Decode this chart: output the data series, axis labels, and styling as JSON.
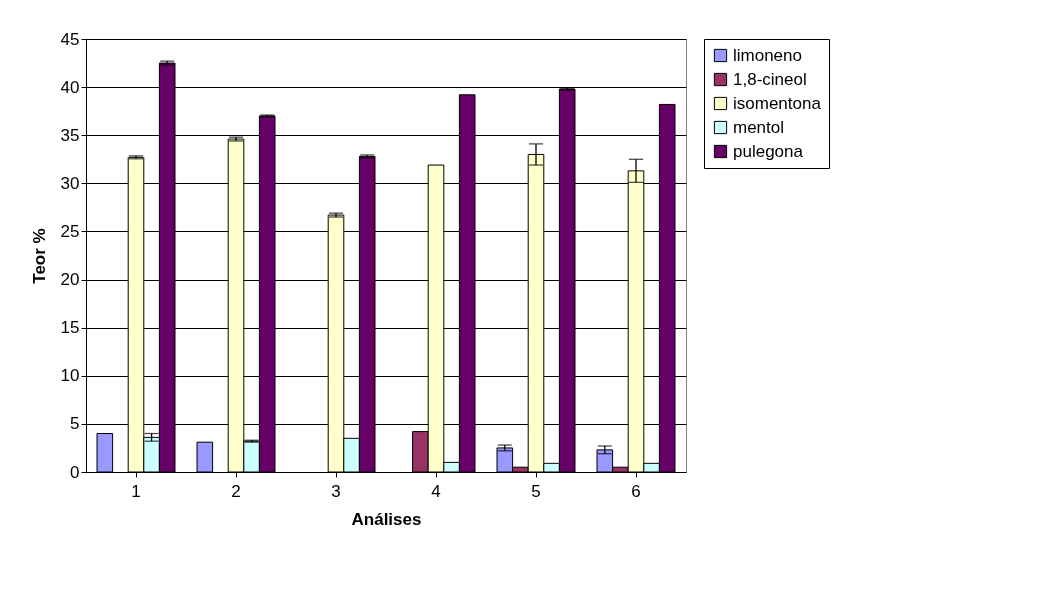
{
  "chart_data": {
    "type": "bar",
    "xlabel": "Análises",
    "ylabel": "Teor %",
    "categories": [
      "1",
      "2",
      "3",
      "4",
      "5",
      "6"
    ],
    "ylim": [
      0,
      45
    ],
    "yticks": [
      0,
      5,
      10,
      15,
      20,
      25,
      30,
      35,
      40,
      45
    ],
    "grid": "y",
    "legend": "right",
    "series": [
      {
        "name": "limoneno",
        "color": "#9999ff",
        "values": [
          4.0,
          3.1,
          0,
          0,
          2.5,
          2.3
        ],
        "errors": [
          null,
          null,
          null,
          null,
          0.3,
          0.4
        ]
      },
      {
        "name": "1,8-cineol",
        "color": "#993366",
        "values": [
          0,
          0,
          0,
          4.2,
          0.5,
          0.5
        ]
      },
      {
        "name": "isomentona",
        "color": "#ffffcc",
        "values": [
          32.7,
          34.6,
          26.7,
          31.9,
          33.0,
          31.3
        ],
        "errors": [
          0.15,
          0.2,
          0.2,
          null,
          1.1,
          1.2
        ]
      },
      {
        "name": "mentol",
        "color": "#ccffff",
        "values": [
          3.6,
          3.2,
          3.5,
          1.0,
          0.9,
          0.9
        ],
        "errors": [
          0.4,
          0.1,
          null,
          null,
          null,
          null
        ]
      },
      {
        "name": "pulegona",
        "color": "#660066",
        "values": [
          42.5,
          37.0,
          32.8,
          39.2,
          39.8,
          38.2
        ],
        "errors": [
          0.2,
          0.1,
          0.15,
          null,
          0.1,
          null
        ]
      }
    ]
  }
}
